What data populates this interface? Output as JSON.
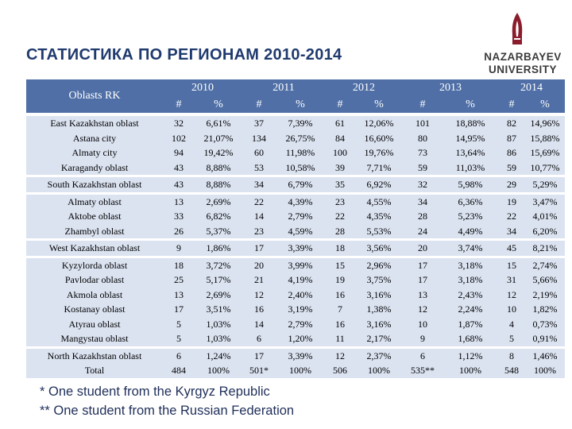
{
  "title": "СТАТИСТИКА ПО РЕГИОНАМ 2010-2014",
  "logo": {
    "line1": "NAZARBAYEV",
    "line2": "UNIVERSITY"
  },
  "table": {
    "oblast_header": "Oblasts RK",
    "years": [
      "2010",
      "2011",
      "2012",
      "2013",
      "2014"
    ],
    "sub_headers": [
      "#",
      "%"
    ],
    "rows": [
      {
        "name": "East Kazakhstan oblast",
        "g": 1,
        "v": [
          "32",
          "6,61%",
          "37",
          "7,39%",
          "61",
          "12,06%",
          "101",
          "18,88%",
          "82",
          "14,96%"
        ]
      },
      {
        "name": "Astana city",
        "g": 0,
        "v": [
          "102",
          "21,07%",
          "134",
          "26,75%",
          "84",
          "16,60%",
          "80",
          "14,95%",
          "87",
          "15,88%"
        ]
      },
      {
        "name": "Almaty city",
        "g": 0,
        "v": [
          "94",
          "19,42%",
          "60",
          "11,98%",
          "100",
          "19,76%",
          "73",
          "13,64%",
          "86",
          "15,69%"
        ]
      },
      {
        "name": "Karagandy oblast",
        "g": 0,
        "v": [
          "43",
          "8,88%",
          "53",
          "10,58%",
          "39",
          "7,71%",
          "59",
          "11,03%",
          "59",
          "10,77%"
        ]
      },
      {
        "name": "South Kazakhstan oblast",
        "g": 1,
        "v": [
          "43",
          "8,88%",
          "34",
          "6,79%",
          "35",
          "6,92%",
          "32",
          "5,98%",
          "29",
          "5,29%"
        ]
      },
      {
        "name": "Almaty oblast",
        "g": 1,
        "v": [
          "13",
          "2,69%",
          "22",
          "4,39%",
          "23",
          "4,55%",
          "34",
          "6,36%",
          "19",
          "3,47%"
        ]
      },
      {
        "name": "Aktobe oblast",
        "g": 0,
        "v": [
          "33",
          "6,82%",
          "14",
          "2,79%",
          "22",
          "4,35%",
          "28",
          "5,23%",
          "22",
          "4,01%"
        ]
      },
      {
        "name": "Zhambyl oblast",
        "g": 0,
        "v": [
          "26",
          "5,37%",
          "23",
          "4,59%",
          "28",
          "5,53%",
          "24",
          "4,49%",
          "34",
          "6,20%"
        ]
      },
      {
        "name": "West Kazakhstan oblast",
        "g": 1,
        "v": [
          "9",
          "1,86%",
          "17",
          "3,39%",
          "18",
          "3,56%",
          "20",
          "3,74%",
          "45",
          "8,21%"
        ]
      },
      {
        "name": "Kyzylorda oblast",
        "g": 1,
        "v": [
          "18",
          "3,72%",
          "20",
          "3,99%",
          "15",
          "2,96%",
          "17",
          "3,18%",
          "15",
          "2,74%"
        ]
      },
      {
        "name": "Pavlodar oblast",
        "g": 0,
        "v": [
          "25",
          "5,17%",
          "21",
          "4,19%",
          "19",
          "3,75%",
          "17",
          "3,18%",
          "31",
          "5,66%"
        ]
      },
      {
        "name": "Akmola oblast",
        "g": 0,
        "v": [
          "13",
          "2,69%",
          "12",
          "2,40%",
          "16",
          "3,16%",
          "13",
          "2,43%",
          "12",
          "2,19%"
        ]
      },
      {
        "name": "Kostanay oblast",
        "g": 0,
        "v": [
          "17",
          "3,51%",
          "16",
          "3,19%",
          "7",
          "1,38%",
          "12",
          "2,24%",
          "10",
          "1,82%"
        ]
      },
      {
        "name": "Atyrau oblast",
        "g": 0,
        "v": [
          "5",
          "1,03%",
          "14",
          "2,79%",
          "16",
          "3,16%",
          "10",
          "1,87%",
          "4",
          "0,73%"
        ]
      },
      {
        "name": "Mangystau oblast",
        "g": 0,
        "v": [
          "5",
          "1,03%",
          "6",
          "1,20%",
          "11",
          "2,17%",
          "9",
          "1,68%",
          "5",
          "0,91%"
        ]
      },
      {
        "name": "North Kazakhstan oblast",
        "g": 1,
        "v": [
          "6",
          "1,24%",
          "17",
          "3,39%",
          "12",
          "2,37%",
          "6",
          "1,12%",
          "8",
          "1,46%"
        ]
      },
      {
        "name": "Total",
        "g": 0,
        "v": [
          "484",
          "100%",
          "501*",
          "100%",
          "506",
          "100%",
          "535**",
          "100%",
          "548",
          "100%"
        ]
      }
    ]
  },
  "footnotes": [
    "* One student from the Kyrgyz Republic",
    "** One student from the Russian Federation"
  ]
}
